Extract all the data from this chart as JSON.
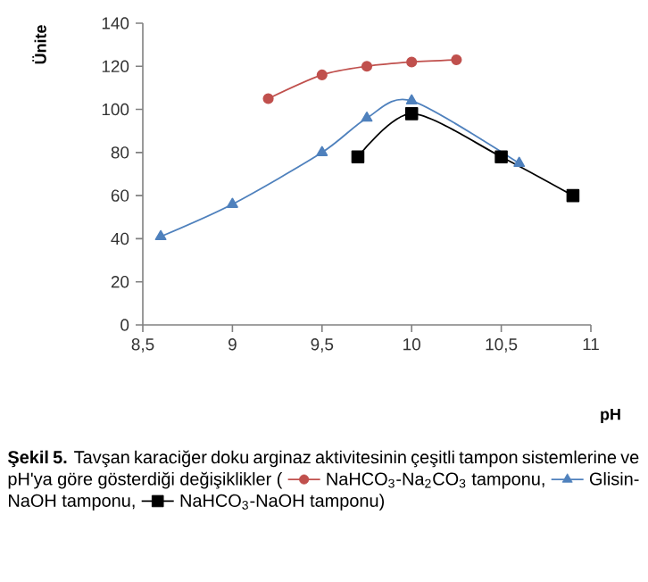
{
  "chart_data": {
    "type": "line",
    "xlabel": "pH",
    "ylabel": "Ünite",
    "annotations": [
      "**Şekil 5.** Tavşan karaciğer doku arginaz aktivitesinin çeşitli tampon sistemlerine ve pH'ya göre gösterdiği değişiklikler (",
      ",",
      ",",
      ")"
    ],
    "xlim": [
      8.5,
      11
    ],
    "xticks": [
      {
        "value": 8.5,
        "label": "8,5"
      },
      9,
      {
        "value": 9.5,
        "label": "9,5"
      },
      10,
      {
        "value": 10.5,
        "label": "10,5"
      },
      11
    ],
    "ylim": [
      0,
      140
    ],
    "yticks": [
      0,
      20,
      40,
      60,
      80,
      100,
      120,
      140
    ],
    "grid": false,
    "legend": "bottom",
    "series": [
      {
        "name": "NaHCO$_{3}$-Na$_{2}$CO$_{3}$ tamponu",
        "color": "#c0504d",
        "marker": "circle",
        "x": [
          9.2,
          9.5,
          9.75,
          10,
          10.25
        ],
        "values": [
          105,
          116,
          120,
          122,
          123
        ]
      },
      {
        "name": "Glisin-NaOH tamponu",
        "color": "#4f81bd",
        "marker": "triangle",
        "x": [
          8.6,
          9,
          9.5,
          9.75,
          10,
          10.6
        ],
        "values": [
          41,
          56,
          80,
          96,
          104,
          75
        ]
      },
      {
        "name": "NaHCO$_{3}$-NaOH tamponu",
        "color": "#000000",
        "marker": "square",
        "x": [
          9.7,
          10,
          10.5,
          10.9
        ],
        "values": [
          78,
          98,
          78,
          60
        ]
      }
    ]
  }
}
